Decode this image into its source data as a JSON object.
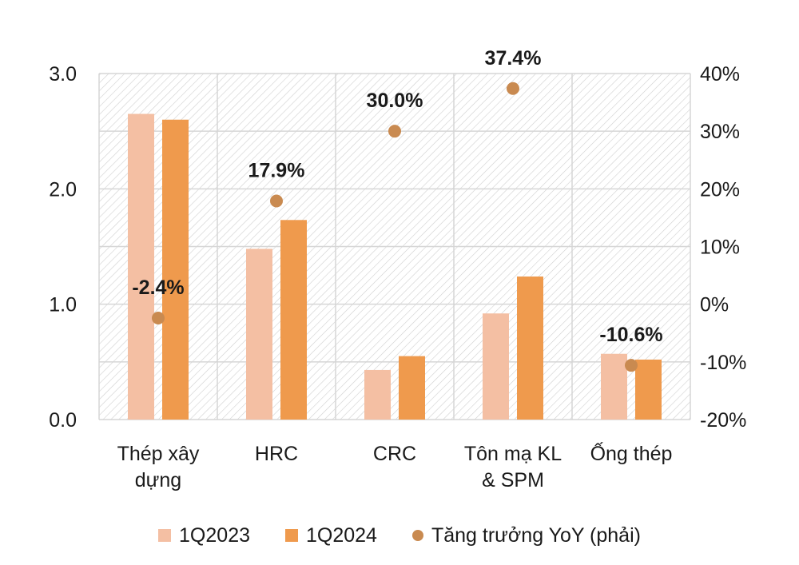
{
  "chart_data": {
    "type": "bar",
    "categories": [
      "Thép xây dựng",
      "HRC",
      "CRC",
      "Tôn mạ KL & SPM",
      "Ống thép"
    ],
    "category_lines": [
      [
        "Thép xây",
        "dựng"
      ],
      [
        "HRC"
      ],
      [
        "CRC"
      ],
      [
        "Tôn mạ KL",
        "& SPM"
      ],
      [
        "Ống thép"
      ]
    ],
    "series": [
      {
        "name": "1Q2023",
        "type": "bar",
        "axis": "left",
        "color": "#f4bfa3",
        "values": [
          2.65,
          1.48,
          0.43,
          0.92,
          0.57
        ]
      },
      {
        "name": "1Q2024",
        "type": "bar",
        "axis": "left",
        "color": "#ef9a4d",
        "values": [
          2.6,
          1.73,
          0.55,
          1.24,
          0.52
        ]
      },
      {
        "name": "Tăng trưởng YoY (phải)",
        "type": "scatter",
        "axis": "right",
        "color": "#c98a50",
        "values": [
          -2.4,
          17.9,
          30.0,
          37.4,
          -10.6
        ]
      }
    ],
    "data_labels": [
      "-2.4%",
      "17.9%",
      "30.0%",
      "37.4%",
      "-10.6%"
    ],
    "left_axis": {
      "ylim": [
        0,
        3.0
      ],
      "ticks": [
        "0.0",
        "1.0",
        "2.0",
        "3.0"
      ],
      "tick_values": [
        0,
        1,
        2,
        3
      ]
    },
    "right_axis": {
      "ylim": [
        -20,
        40
      ],
      "ticks": [
        "-20%",
        "-10%",
        "0%",
        "10%",
        "20%",
        "30%",
        "40%"
      ],
      "tick_values": [
        -20,
        -10,
        0,
        10,
        20,
        30,
        40
      ]
    },
    "grid": true,
    "legend_position": "bottom"
  }
}
